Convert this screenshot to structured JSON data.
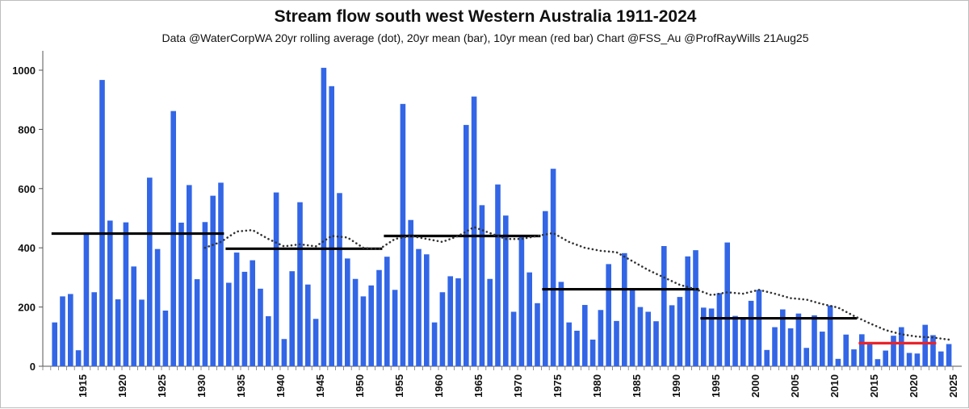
{
  "chart_data": {
    "type": "bar",
    "title": "Stream flow south west Western Australia 1911-2024",
    "subtitle": "Data @WaterCorpWA 20yr rolling average (dot), 20yr mean (bar), 10yr mean (red bar)  Chart @FSS_Au @ProfRayWills 21Aug25",
    "xlabel": "",
    "ylabel": "",
    "ylim": [
      0,
      1050
    ],
    "xlim": [
      1910,
      2025
    ],
    "yticks": [
      "0",
      "200",
      "400",
      "600",
      "800",
      "1000"
    ],
    "xticks": [
      "1915",
      "1920",
      "1925",
      "1930",
      "1935",
      "1940",
      "1945",
      "1950",
      "1955",
      "1960",
      "1965",
      "1970",
      "1975",
      "1980",
      "1985",
      "1990",
      "1995",
      "2000",
      "2005",
      "2010",
      "2015",
      "2020",
      "2025"
    ],
    "grid": false,
    "colors": {
      "bars": "#3366e6",
      "mean20": "#000000",
      "mean10": "#e8232a",
      "rolling": "#333333"
    },
    "bars": {
      "years": [
        1911,
        1912,
        1913,
        1914,
        1915,
        1916,
        1917,
        1918,
        1919,
        1920,
        1921,
        1922,
        1923,
        1924,
        1925,
        1926,
        1927,
        1928,
        1929,
        1930,
        1931,
        1932,
        1933,
        1934,
        1935,
        1936,
        1937,
        1938,
        1939,
        1940,
        1941,
        1942,
        1943,
        1944,
        1945,
        1946,
        1947,
        1948,
        1949,
        1950,
        1951,
        1952,
        1953,
        1954,
        1955,
        1956,
        1957,
        1958,
        1959,
        1960,
        1961,
        1962,
        1963,
        1964,
        1965,
        1966,
        1967,
        1968,
        1969,
        1970,
        1971,
        1972,
        1973,
        1974,
        1975,
        1976,
        1977,
        1978,
        1979,
        1980,
        1981,
        1982,
        1983,
        1984,
        1985,
        1986,
        1987,
        1988,
        1989,
        1990,
        1991,
        1992,
        1993,
        1994,
        1995,
        1996,
        1997,
        1998,
        1999,
        2000,
        2001,
        2002,
        2003,
        2004,
        2005,
        2006,
        2007,
        2008,
        2009,
        2010,
        2011,
        2012,
        2013,
        2014,
        2015,
        2016,
        2017,
        2018,
        2019,
        2020,
        2021,
        2022,
        2023,
        2024
      ],
      "values": [
        148,
        236,
        244,
        54,
        448,
        250,
        967,
        492,
        226,
        486,
        337,
        225,
        637,
        396,
        188,
        862,
        485,
        612,
        294,
        487,
        576,
        620,
        282,
        384,
        319,
        358,
        262,
        169,
        587,
        92,
        321,
        554,
        276,
        160,
        1008,
        946,
        585,
        364,
        295,
        236,
        273,
        325,
        370,
        258,
        886,
        494,
        396,
        378,
        148,
        250,
        304,
        297,
        815,
        911,
        544,
        295,
        614,
        509,
        184,
        437,
        317,
        213,
        524,
        667,
        285,
        148,
        120,
        207,
        90,
        190,
        345,
        153,
        382,
        262,
        200,
        184,
        152,
        406,
        206,
        234,
        371,
        392,
        198,
        195,
        247,
        418,
        170,
        166,
        221,
        258,
        55,
        132,
        192,
        128,
        178,
        62,
        172,
        117,
        205,
        25,
        107,
        57,
        108,
        80,
        24,
        53,
        103,
        132,
        45,
        43,
        140,
        105,
        50,
        75
      ]
    },
    "mean_20yr": [
      {
        "start": 1911,
        "end": 1932,
        "value": 448
      },
      {
        "start": 1933,
        "end": 1952,
        "value": 397
      },
      {
        "start": 1953,
        "end": 1972,
        "value": 440
      },
      {
        "start": 1973,
        "end": 1992,
        "value": 260
      },
      {
        "start": 1993,
        "end": 2012,
        "value": 162
      }
    ],
    "mean_10yr": [
      {
        "start": 2013,
        "end": 2022,
        "value": 78
      }
    ],
    "rolling_20yr": {
      "years": [
        1930,
        1932,
        1934,
        1936,
        1938,
        1940,
        1942,
        1944,
        1946,
        1948,
        1950,
        1952,
        1954,
        1956,
        1958,
        1960,
        1962,
        1964,
        1966,
        1968,
        1970,
        1972,
        1974,
        1976,
        1978,
        1980,
        1982,
        1984,
        1986,
        1988,
        1990,
        1992,
        1994,
        1996,
        1998,
        2000,
        2002,
        2004,
        2006,
        2008,
        2010,
        2012,
        2014,
        2016,
        2018,
        2020,
        2022,
        2024
      ],
      "values": [
        400,
        420,
        455,
        460,
        430,
        405,
        412,
        405,
        440,
        435,
        400,
        395,
        430,
        440,
        430,
        420,
        440,
        470,
        450,
        430,
        430,
        440,
        450,
        420,
        400,
        390,
        385,
        355,
        325,
        300,
        275,
        260,
        240,
        250,
        245,
        258,
        245,
        230,
        225,
        210,
        198,
        170,
        145,
        122,
        108,
        100,
        97,
        90
      ]
    }
  }
}
